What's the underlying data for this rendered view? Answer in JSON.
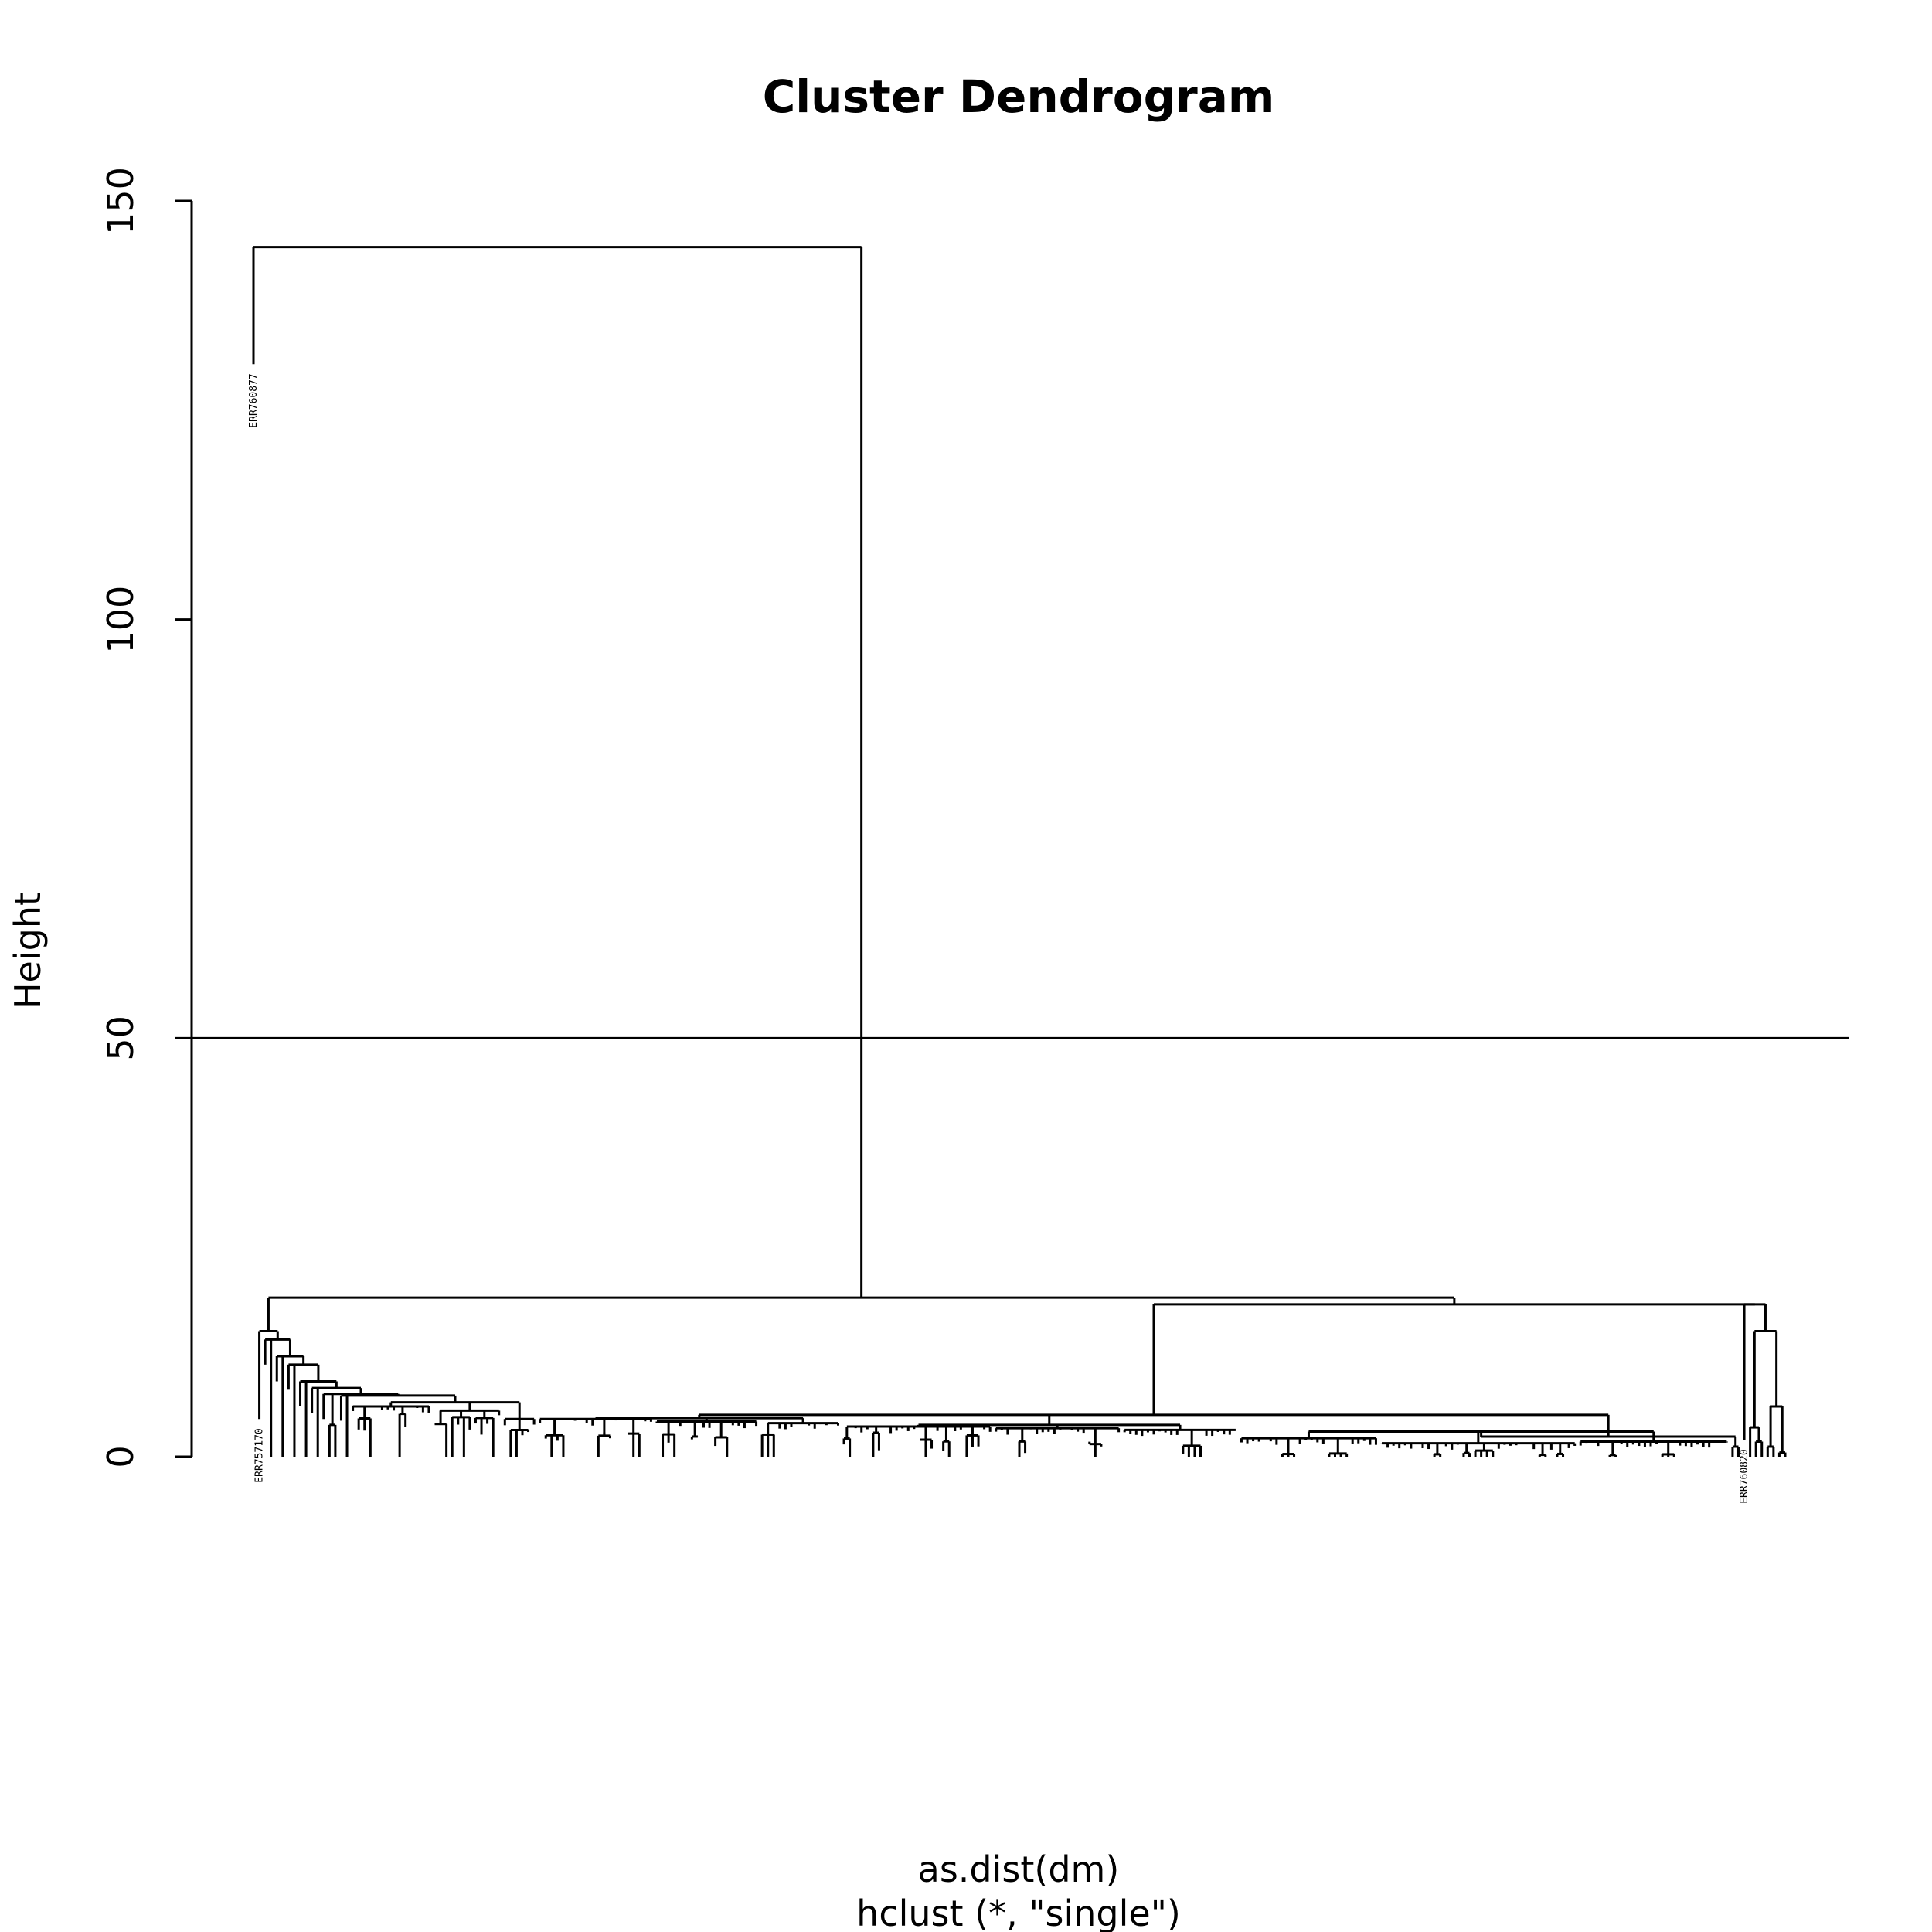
{
  "chart_data": {
    "type": "dendrogram",
    "title": "Cluster Dendrogram",
    "xlabel": "as.dist(dm)",
    "xlabel_sub": "hclust (*, \"single\")",
    "ylabel": "Height",
    "ylim": [
      0,
      150
    ],
    "yticks": [
      0,
      50,
      100,
      150
    ],
    "cut_height": 50,
    "method": "single",
    "n_leaves": 240,
    "top_merge_height": 144.5,
    "outlier": {
      "label": "ERR760877",
      "height": 130.5
    },
    "main_cluster_height": 19,
    "sub_cluster_height": 18.2,
    "right_subcluster_height": 15,
    "labeled_leaves": [
      "ERR757170",
      "ERR760820"
    ]
  }
}
